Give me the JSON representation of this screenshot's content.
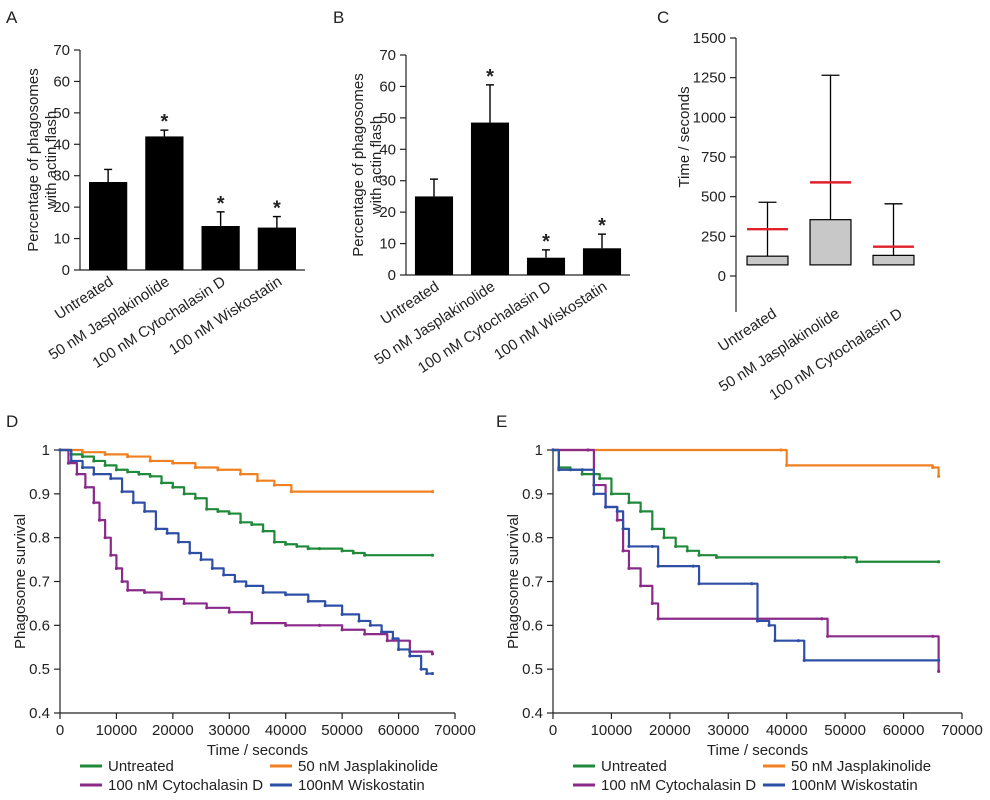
{
  "chart_data": [
    {
      "panel": "A",
      "type": "bar",
      "ylabel": "Percentage of phagosomes\nwith actin flash",
      "ylim": [
        0,
        70
      ],
      "yticks": [
        0,
        10,
        20,
        30,
        40,
        50,
        60,
        70
      ],
      "categories": [
        "Untreated",
        "50 nM Jasplakinolide",
        "100 nM Cytochalasin D",
        "100 nM Wiskostatin"
      ],
      "values": [
        28,
        42.5,
        14,
        13.5
      ],
      "errors": [
        4,
        2,
        4.5,
        3.5
      ],
      "significant": [
        false,
        true,
        true,
        true
      ],
      "significance_marker": "*"
    },
    {
      "panel": "B",
      "type": "bar",
      "ylabel": "Percentage of phagosomes\nwith actin flash",
      "ylim": [
        0,
        70
      ],
      "yticks": [
        0,
        10,
        20,
        30,
        40,
        50,
        60,
        70
      ],
      "categories": [
        "Untreated",
        "50 nM Jasplakinolide",
        "100 nM Cytochalasin D",
        "100 nM Wiskostatin"
      ],
      "values": [
        25,
        48.5,
        5.5,
        8.5
      ],
      "errors": [
        5.5,
        12,
        2.5,
        4.5
      ],
      "significant": [
        false,
        true,
        true,
        true
      ],
      "significance_marker": "*"
    },
    {
      "panel": "C",
      "type": "box",
      "ylabel": "Time / seconds",
      "ylim": [
        0,
        1500
      ],
      "yticks": [
        0,
        250,
        500,
        750,
        1000,
        1250,
        1500
      ],
      "categories": [
        "Untreated",
        "50 nM Jasplakinolide",
        "100 nM Cytochalasin D"
      ],
      "boxes": [
        {
          "low": 70,
          "q1": 70,
          "q3": 125,
          "high": 465,
          "mean": 295
        },
        {
          "low": 70,
          "q1": 70,
          "q3": 355,
          "high": 1265,
          "mean": 590
        },
        {
          "low": 70,
          "q1": 70,
          "q3": 130,
          "high": 455,
          "mean": 185
        }
      ],
      "colors": {
        "box": "#c8c8c8",
        "mean": "#e0202a"
      }
    },
    {
      "panel": "D",
      "type": "line",
      "xlabel": "Time / seconds",
      "ylabel": "Phagosome survival",
      "xlim": [
        0,
        70000
      ],
      "ylim": [
        0.4,
        1
      ],
      "xticks": [
        0,
        10000,
        20000,
        30000,
        40000,
        50000,
        60000,
        70000
      ],
      "yticks": [
        0.4,
        0.5,
        0.6,
        0.7,
        0.8,
        0.9,
        1
      ],
      "legend_placement": "bottom",
      "series": [
        {
          "name": "Untreated",
          "color": "#1f8a3a",
          "points": [
            [
              0,
              1
            ],
            [
              2000,
              0.99
            ],
            [
              4000,
              0.985
            ],
            [
              6000,
              0.975
            ],
            [
              8000,
              0.965
            ],
            [
              10000,
              0.955
            ],
            [
              12000,
              0.95
            ],
            [
              14000,
              0.945
            ],
            [
              16000,
              0.94
            ],
            [
              18000,
              0.925
            ],
            [
              20000,
              0.915
            ],
            [
              22000,
              0.9
            ],
            [
              24000,
              0.89
            ],
            [
              26000,
              0.865
            ],
            [
              28000,
              0.86
            ],
            [
              30000,
              0.855
            ],
            [
              32000,
              0.835
            ],
            [
              34000,
              0.83
            ],
            [
              36000,
              0.815
            ],
            [
              38000,
              0.79
            ],
            [
              40000,
              0.785
            ],
            [
              42000,
              0.78
            ],
            [
              44000,
              0.775
            ],
            [
              46000,
              0.775
            ],
            [
              50000,
              0.77
            ],
            [
              52000,
              0.765
            ],
            [
              54000,
              0.76
            ],
            [
              66000,
              0.76
            ]
          ]
        },
        {
          "name": "50 nM Jasplakinolide",
          "color": "#f08020",
          "points": [
            [
              0,
              1
            ],
            [
              4000,
              0.995
            ],
            [
              8000,
              0.99
            ],
            [
              12000,
              0.985
            ],
            [
              16000,
              0.975
            ],
            [
              20000,
              0.97
            ],
            [
              24000,
              0.96
            ],
            [
              28000,
              0.955
            ],
            [
              32000,
              0.945
            ],
            [
              35000,
              0.93
            ],
            [
              38000,
              0.92
            ],
            [
              41000,
              0.905
            ],
            [
              66000,
              0.905
            ]
          ]
        },
        {
          "name": "100 nM Cytochalasin D",
          "color": "#8a2a8a",
          "points": [
            [
              0,
              1
            ],
            [
              1500,
              0.97
            ],
            [
              3000,
              0.945
            ],
            [
              4500,
              0.915
            ],
            [
              6000,
              0.88
            ],
            [
              7000,
              0.84
            ],
            [
              8000,
              0.8
            ],
            [
              9000,
              0.76
            ],
            [
              10000,
              0.73
            ],
            [
              11000,
              0.7
            ],
            [
              12000,
              0.68
            ],
            [
              15000,
              0.675
            ],
            [
              18000,
              0.66
            ],
            [
              22000,
              0.65
            ],
            [
              26000,
              0.64
            ],
            [
              30000,
              0.63
            ],
            [
              34000,
              0.605
            ],
            [
              40000,
              0.6
            ],
            [
              46000,
              0.6
            ],
            [
              50000,
              0.59
            ],
            [
              54000,
              0.58
            ],
            [
              58000,
              0.565
            ],
            [
              62000,
              0.54
            ],
            [
              66000,
              0.535
            ]
          ]
        },
        {
          "name": "100nM Wiskostatin",
          "color": "#2e4fa6",
          "points": [
            [
              0,
              1
            ],
            [
              2000,
              0.975
            ],
            [
              4000,
              0.96
            ],
            [
              6000,
              0.945
            ],
            [
              9000,
              0.935
            ],
            [
              11000,
              0.905
            ],
            [
              13000,
              0.88
            ],
            [
              15000,
              0.86
            ],
            [
              17000,
              0.82
            ],
            [
              19000,
              0.81
            ],
            [
              21000,
              0.79
            ],
            [
              23000,
              0.765
            ],
            [
              25000,
              0.75
            ],
            [
              27000,
              0.73
            ],
            [
              29000,
              0.715
            ],
            [
              31000,
              0.7
            ],
            [
              33000,
              0.69
            ],
            [
              36000,
              0.675
            ],
            [
              40000,
              0.67
            ],
            [
              44000,
              0.655
            ],
            [
              47000,
              0.645
            ],
            [
              50000,
              0.625
            ],
            [
              53000,
              0.61
            ],
            [
              55000,
              0.6
            ],
            [
              57000,
              0.585
            ],
            [
              59000,
              0.57
            ],
            [
              60000,
              0.545
            ],
            [
              62000,
              0.53
            ],
            [
              64000,
              0.5
            ],
            [
              65000,
              0.49
            ],
            [
              66000,
              0.49
            ]
          ]
        }
      ],
      "legend_order": [
        "Untreated",
        "50 nM Jasplakinolide",
        "100 nM Cytochalasin D",
        "100nM Wiskostatin"
      ]
    },
    {
      "panel": "E",
      "type": "line",
      "xlabel": "Time / seconds",
      "ylabel": "Phagosome survival",
      "xlim": [
        0,
        70000
      ],
      "ylim": [
        0.4,
        1
      ],
      "xticks": [
        0,
        10000,
        20000,
        30000,
        40000,
        50000,
        60000,
        70000
      ],
      "yticks": [
        0.4,
        0.5,
        0.6,
        0.7,
        0.8,
        0.9,
        1
      ],
      "legend_placement": "bottom",
      "series": [
        {
          "name": "Untreated",
          "color": "#1f8a3a",
          "points": [
            [
              0,
              1
            ],
            [
              1000,
              0.96
            ],
            [
              3000,
              0.955
            ],
            [
              5000,
              0.945
            ],
            [
              8000,
              0.935
            ],
            [
              10000,
              0.9
            ],
            [
              13000,
              0.88
            ],
            [
              15000,
              0.86
            ],
            [
              17000,
              0.82
            ],
            [
              19000,
              0.8
            ],
            [
              21000,
              0.78
            ],
            [
              23000,
              0.77
            ],
            [
              25000,
              0.76
            ],
            [
              28000,
              0.755
            ],
            [
              50000,
              0.755
            ],
            [
              52000,
              0.745
            ],
            [
              66000,
              0.745
            ]
          ]
        },
        {
          "name": "50 nM Jasplakinolide",
          "color": "#f08020",
          "points": [
            [
              0,
              1
            ],
            [
              39000,
              1
            ],
            [
              40000,
              0.965
            ],
            [
              65000,
              0.96
            ],
            [
              66000,
              0.94
            ]
          ]
        },
        {
          "name": "100 nM Cytochalasin D",
          "color": "#8a2a8a",
          "points": [
            [
              0,
              1
            ],
            [
              6000,
              1
            ],
            [
              7000,
              0.92
            ],
            [
              9000,
              0.87
            ],
            [
              11000,
              0.84
            ],
            [
              12000,
              0.77
            ],
            [
              13000,
              0.73
            ],
            [
              15000,
              0.69
            ],
            [
              17000,
              0.65
            ],
            [
              18000,
              0.615
            ],
            [
              46000,
              0.615
            ],
            [
              47000,
              0.575
            ],
            [
              65000,
              0.575
            ],
            [
              66000,
              0.495
            ]
          ]
        },
        {
          "name": "100nM Wiskostatin",
          "color": "#2e4fa6",
          "points": [
            [
              0,
              1
            ],
            [
              1000,
              0.955
            ],
            [
              5000,
              0.955
            ],
            [
              7000,
              0.9
            ],
            [
              9000,
              0.87
            ],
            [
              11000,
              0.86
            ],
            [
              12000,
              0.82
            ],
            [
              13000,
              0.78
            ],
            [
              17000,
              0.78
            ],
            [
              18000,
              0.735
            ],
            [
              24000,
              0.735
            ],
            [
              25000,
              0.695
            ],
            [
              34000,
              0.695
            ],
            [
              35000,
              0.61
            ],
            [
              37000,
              0.6
            ],
            [
              38000,
              0.565
            ],
            [
              42000,
              0.565
            ],
            [
              43000,
              0.52
            ],
            [
              66000,
              0.52
            ]
          ]
        }
      ],
      "legend_order": [
        "Untreated",
        "50 nM Jasplakinolide",
        "100 nM Cytochalasin D",
        "100nM Wiskostatin"
      ]
    }
  ],
  "panel_labels": [
    "A",
    "B",
    "C",
    "D",
    "E"
  ]
}
